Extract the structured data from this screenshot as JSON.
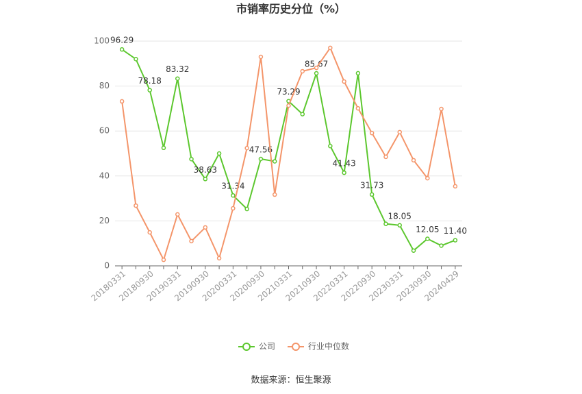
{
  "chart_data": {
    "type": "line",
    "title": "市销率历史分位（%）",
    "source": "数据来源：恒生聚源",
    "categories": [
      "20180331",
      null,
      "20180930",
      null,
      "20190331",
      null,
      "20190930",
      null,
      "20200331",
      null,
      "20200930",
      null,
      "20210331",
      null,
      "20210930",
      null,
      "20220331",
      null,
      "20220930",
      null,
      "20230331",
      null,
      "20230930",
      null,
      "20240429"
    ],
    "ylim": [
      0,
      100
    ],
    "yticks": [
      0,
      20,
      40,
      60,
      80,
      100
    ],
    "grid": true,
    "legend": "bottom",
    "series": [
      {
        "name": "公司",
        "color": "#5cc72e",
        "values": [
          96.29,
          92,
          78.18,
          52.5,
          83.32,
          47.5,
          38.63,
          50,
          31.34,
          25.3,
          47.56,
          46.5,
          73.29,
          67.5,
          85.67,
          53.3,
          41.43,
          85.7,
          31.73,
          18.7,
          18.05,
          6.8,
          12.05,
          9.0,
          11.4
        ],
        "value_labels": [
          "96.29",
          null,
          "78.18",
          null,
          "83.32",
          null,
          "38.63",
          null,
          "31.34",
          null,
          "47.56",
          null,
          "73.29",
          null,
          "85.67",
          null,
          "41.43",
          null,
          "31.73",
          null,
          "18.05",
          null,
          "12.05",
          null,
          "11.40"
        ]
      },
      {
        "name": "行业中位数",
        "color": "#f4956a",
        "values": [
          73.2,
          26.8,
          14.9,
          2.7,
          22.9,
          11,
          17.1,
          3.4,
          25.6,
          52.4,
          93,
          31.7,
          71.3,
          86.6,
          88.1,
          97,
          82,
          70.1,
          59.1,
          48.5,
          59.5,
          47,
          39,
          69.8,
          35.4
        ]
      }
    ]
  }
}
